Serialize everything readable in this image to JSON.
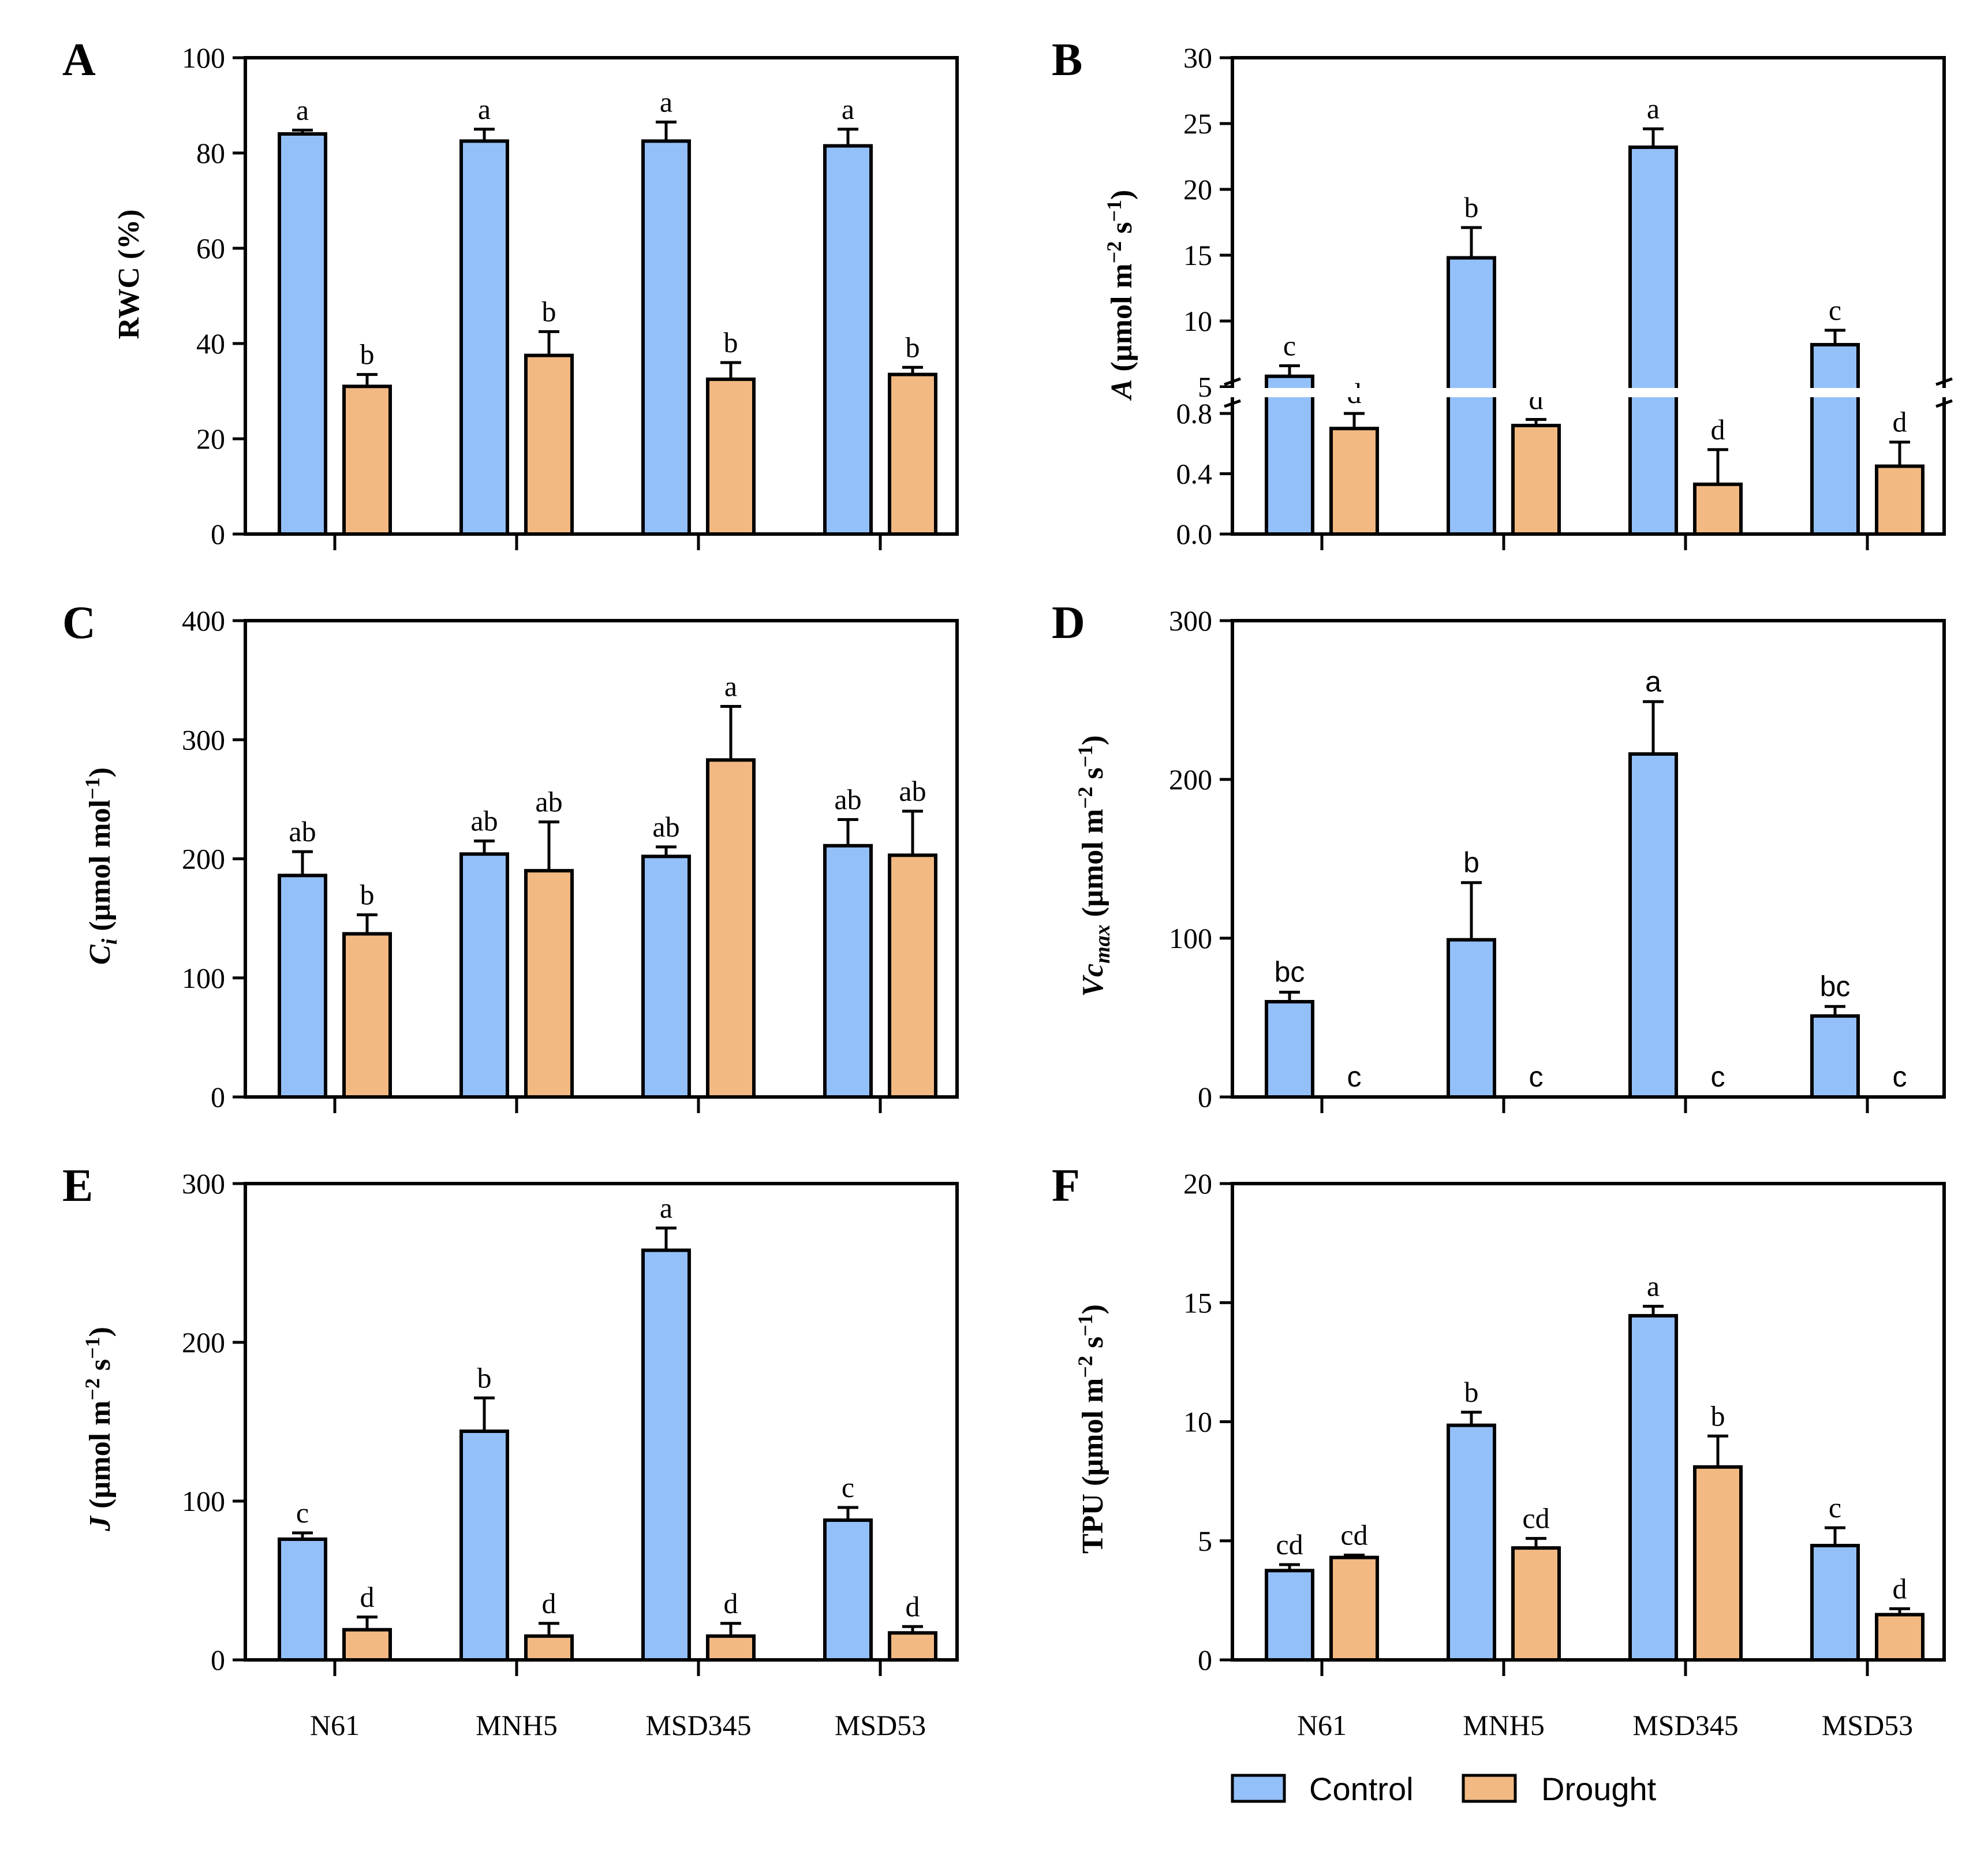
{
  "colors": {
    "control": "#94c0fa",
    "drought": "#f2b983",
    "stroke": "#000000"
  },
  "legend": [
    {
      "name": "Control",
      "color": "#94c0fa"
    },
    {
      "name": "Drought",
      "color": "#f2b983"
    }
  ],
  "chart_data": [
    {
      "panel": "A",
      "type": "bar",
      "ylabel": "RWC (%)",
      "categories": [
        "N61",
        "MNH5",
        "MSD345",
        "MSD53"
      ],
      "ylim": [
        0,
        100
      ],
      "yticks": [
        "0",
        "20",
        "40",
        "60",
        "80",
        "100"
      ],
      "letter_font": "serif",
      "series": [
        {
          "name": "Control",
          "values": [
            84,
            82.5,
            82.5,
            81.5
          ],
          "errors": [
            0.8,
            2.5,
            4,
            3.5
          ],
          "letters": [
            "a",
            "a",
            "a",
            "a"
          ]
        },
        {
          "name": "Drought",
          "values": [
            31,
            37.5,
            32.5,
            33.5
          ],
          "errors": [
            2.5,
            5,
            3.5,
            1.5
          ],
          "letters": [
            "b",
            "b",
            "b",
            "b"
          ]
        }
      ]
    },
    {
      "panel": "B",
      "type": "bar",
      "ylabel_prefix": "A",
      "ylabel_unit": " (µmol m",
      "ylabel_sup1": "−2",
      "ylabel_mid": " s",
      "ylabel_sup2": "−1",
      "ylabel_end": ")",
      "categories": [
        "N61",
        "MNH5",
        "MSD345",
        "MSD53"
      ],
      "ylim_lower": [
        0,
        0.9
      ],
      "ylim_upper": [
        5,
        30
      ],
      "yticks_lower": [
        "0.0",
        "0.4",
        "0.8"
      ],
      "yticks_upper": [
        "5",
        "10",
        "15",
        "20",
        "25",
        "30"
      ],
      "letter_font": "serif",
      "series": [
        {
          "name": "Control",
          "values": [
            5.8,
            14.8,
            23.2,
            8.2
          ],
          "errors": [
            0.8,
            2.3,
            1.4,
            1.1
          ],
          "letters": [
            "c",
            "b",
            "a",
            "c"
          ]
        },
        {
          "name": "Drought",
          "values": [
            0.7,
            0.72,
            0.33,
            0.45
          ],
          "errors": [
            0.1,
            0.04,
            0.23,
            0.16
          ],
          "letters": [
            "d",
            "d",
            "d",
            "d"
          ]
        }
      ]
    },
    {
      "panel": "C",
      "type": "bar",
      "ylabel_prefix": "C",
      "ylabel_sub": "i",
      "ylabel_unit": " (µmol mol",
      "ylabel_sup1": "−1",
      "ylabel_end": ")",
      "categories": [
        "N61",
        "MNH5",
        "MSD345",
        "MSD53"
      ],
      "ylim": [
        0,
        400
      ],
      "yticks": [
        "0",
        "100",
        "200",
        "300",
        "400"
      ],
      "letter_font": "serif",
      "series": [
        {
          "name": "Control",
          "values": [
            186,
            204,
            202,
            211
          ],
          "errors": [
            20,
            11,
            8,
            22
          ],
          "letters": [
            "ab",
            "ab",
            "ab",
            "ab"
          ]
        },
        {
          "name": "Drought",
          "values": [
            137,
            190,
            283,
            203
          ],
          "errors": [
            16,
            41,
            45,
            37
          ],
          "letters": [
            "b",
            "ab",
            "a",
            "ab"
          ]
        }
      ]
    },
    {
      "panel": "D",
      "type": "bar",
      "ylabel_prefix": "Vc",
      "ylabel_sub": "max",
      "ylabel_unit": " (µmol m",
      "ylabel_sup1": "−2",
      "ylabel_mid": " s",
      "ylabel_sup2": "−1",
      "ylabel_end": ")",
      "categories": [
        "N61",
        "MNH5",
        "MSD345",
        "MSD53"
      ],
      "ylim": [
        0,
        300
      ],
      "yticks": [
        "0",
        "100",
        "200",
        "300"
      ],
      "letter_font": "sans",
      "series": [
        {
          "name": "Control",
          "values": [
            60,
            99,
            216,
            51
          ],
          "errors": [
            6,
            36,
            33,
            6
          ],
          "letters": [
            "bc",
            "b",
            "a",
            "bc"
          ]
        },
        {
          "name": "Drought",
          "values": [
            0,
            0,
            0,
            0
          ],
          "errors": [
            0,
            0,
            0,
            0
          ],
          "letters": [
            "c",
            "c",
            "c",
            "c"
          ]
        }
      ]
    },
    {
      "panel": "E",
      "type": "bar",
      "ylabel_prefix": "J",
      "ylabel_unit": " (µmol m",
      "ylabel_sup1": "−2",
      "ylabel_mid": " s",
      "ylabel_sup2": "−1",
      "ylabel_end": ")",
      "categories": [
        "N61",
        "MNH5",
        "MSD345",
        "MSD53"
      ],
      "ylim": [
        0,
        300
      ],
      "yticks": [
        "0",
        "100",
        "200",
        "300"
      ],
      "letter_font": "serif",
      "series": [
        {
          "name": "Control",
          "values": [
            76,
            144,
            258,
            88
          ],
          "errors": [
            4,
            21,
            14,
            8
          ],
          "letters": [
            "c",
            "b",
            "a",
            "c"
          ]
        },
        {
          "name": "Drought",
          "values": [
            19,
            15,
            15,
            17
          ],
          "errors": [
            8,
            8,
            8,
            4
          ],
          "letters": [
            "d",
            "d",
            "d",
            "d"
          ]
        }
      ]
    },
    {
      "panel": "F",
      "type": "bar",
      "ylabel": "TPU (µmol m",
      "ylabel_sup1": "−2",
      "ylabel_mid": " s",
      "ylabel_sup2": "−1",
      "ylabel_end": ")",
      "categories": [
        "N61",
        "MNH5",
        "MSD345",
        "MSD53"
      ],
      "ylim": [
        0,
        20
      ],
      "yticks": [
        "0",
        "5",
        "10",
        "15",
        "20"
      ],
      "letter_font": "serif",
      "series": [
        {
          "name": "Control",
          "values": [
            3.75,
            9.85,
            14.45,
            4.8
          ],
          "errors": [
            0.25,
            0.55,
            0.4,
            0.75
          ],
          "letters": [
            "cd",
            "b",
            "a",
            "c"
          ]
        },
        {
          "name": "Drought",
          "values": [
            4.3,
            4.7,
            8.1,
            1.9
          ],
          "errors": [
            0.1,
            0.4,
            1.3,
            0.25
          ],
          "letters": [
            "cd",
            "cd",
            "b",
            "d"
          ]
        }
      ]
    }
  ]
}
